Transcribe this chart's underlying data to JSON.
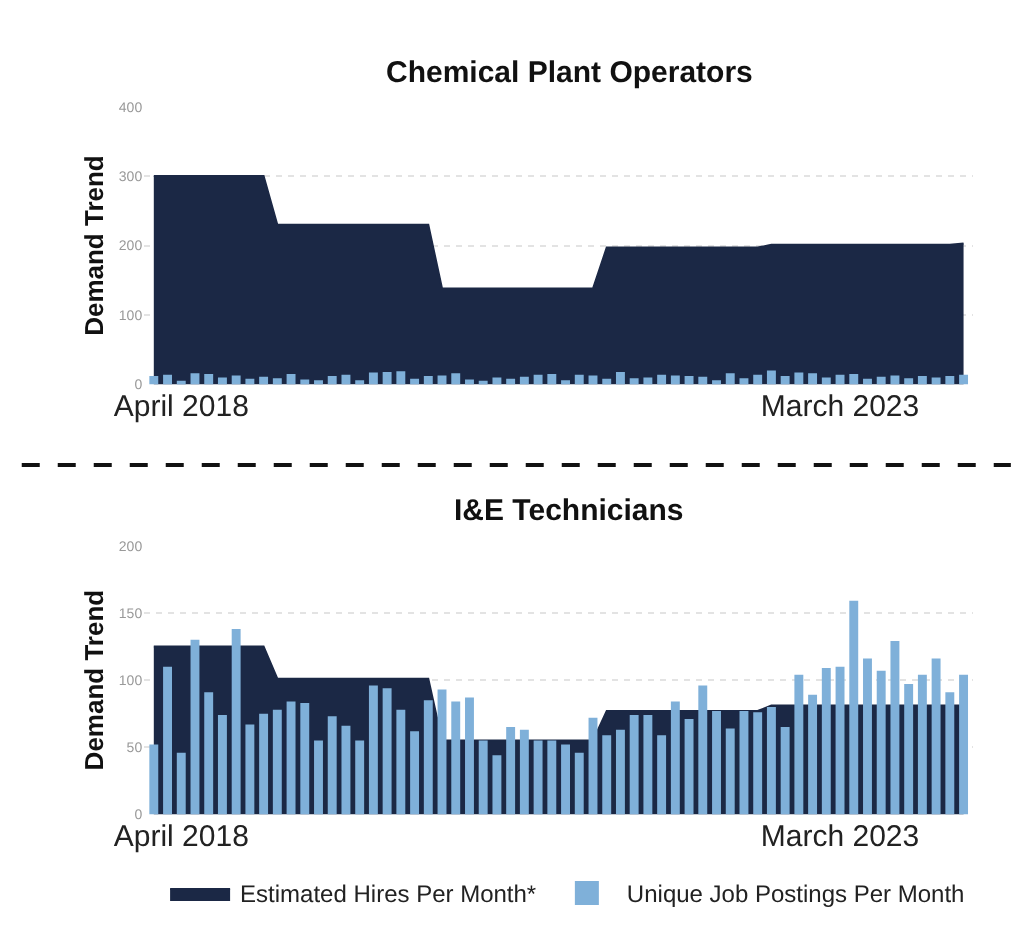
{
  "chart_data": [
    {
      "type": "area",
      "title": "Chemical Plant Operators",
      "ylabel": "Demand Trend",
      "categories": [
        null,
        null,
        "April 2018",
        null,
        null,
        null,
        null,
        null,
        null,
        null,
        null,
        null,
        null,
        null,
        null,
        null,
        null,
        null,
        null,
        null,
        null,
        null,
        null,
        null,
        null,
        null,
        null,
        null,
        null,
        null,
        null,
        null,
        null,
        null,
        null,
        null,
        null,
        null,
        null,
        null,
        null,
        null,
        null,
        null,
        null,
        null,
        null,
        null,
        null,
        null,
        "March 2023",
        null,
        null,
        null,
        null,
        null,
        null,
        null,
        null,
        null
      ],
      "series": [
        {
          "color": "#1b2845",
          "values": [
            300,
            300,
            300,
            300,
            300,
            300,
            300,
            300,
            300,
            230,
            230,
            230,
            230,
            230,
            230,
            230,
            230,
            230,
            230,
            230,
            230,
            138,
            138,
            138,
            138,
            138,
            138,
            138,
            138,
            138,
            138,
            138,
            138,
            197,
            197,
            197,
            197,
            197,
            197,
            197,
            197,
            197,
            197,
            197,
            197,
            201,
            201,
            201,
            201,
            201,
            201,
            201,
            201,
            201,
            201,
            201,
            201,
            201,
            201,
            203
          ]
        },
        {
          "type": "bar",
          "color": "#7fb0d9",
          "values": [
            12,
            14,
            5,
            16,
            15,
            10,
            13,
            8,
            11,
            9,
            15,
            7,
            6,
            12,
            14,
            6,
            17,
            18,
            19,
            8,
            12,
            13,
            16,
            7,
            5,
            10,
            8,
            11,
            14,
            15,
            6,
            14,
            13,
            8,
            18,
            9,
            10,
            14,
            13,
            12,
            11,
            6,
            16,
            9,
            14,
            20,
            12,
            17,
            16,
            10,
            14,
            15,
            8,
            11,
            13,
            9,
            12,
            10,
            12,
            14
          ]
        }
      ],
      "ylim": [
        0,
        400
      ],
      "yticks": [
        0,
        100,
        200,
        300,
        400
      ],
      "grid": "y"
    },
    {
      "type": "area",
      "title": "I&E Technicians",
      "ylabel": "Demand Trend",
      "categories": [
        null,
        null,
        "April 2018",
        null,
        null,
        null,
        null,
        null,
        null,
        null,
        null,
        null,
        null,
        null,
        null,
        null,
        null,
        null,
        null,
        null,
        null,
        null,
        null,
        null,
        null,
        null,
        null,
        null,
        null,
        null,
        null,
        null,
        null,
        null,
        null,
        null,
        null,
        null,
        null,
        null,
        null,
        null,
        null,
        null,
        null,
        null,
        null,
        null,
        null,
        null,
        "March 2023",
        null,
        null,
        null,
        null,
        null,
        null,
        null,
        null,
        null
      ],
      "series": [
        {
          "name": "Estimated Hires Per Month*",
          "color": "#1b2845",
          "values": [
            125,
            125,
            125,
            125,
            125,
            125,
            125,
            125,
            125,
            101,
            101,
            101,
            101,
            101,
            101,
            101,
            101,
            101,
            101,
            101,
            101,
            55,
            55,
            55,
            55,
            55,
            55,
            55,
            55,
            55,
            55,
            55,
            55,
            77,
            77,
            77,
            77,
            77,
            77,
            77,
            77,
            77,
            77,
            77,
            77,
            81,
            81,
            81,
            81,
            81,
            81,
            81,
            81,
            81,
            81,
            81,
            81,
            81,
            81,
            81
          ]
        },
        {
          "name": "Unique Job Postings Per Month",
          "type": "bar",
          "color": "#7fb0d9",
          "values": [
            52,
            110,
            46,
            130,
            91,
            74,
            138,
            67,
            75,
            78,
            84,
            83,
            55,
            73,
            66,
            55,
            96,
            94,
            78,
            62,
            85,
            93,
            84,
            87,
            55,
            44,
            65,
            63,
            55,
            55,
            52,
            46,
            72,
            59,
            63,
            74,
            74,
            59,
            84,
            71,
            96,
            77,
            64,
            77,
            76,
            80,
            65,
            104,
            89,
            109,
            110,
            159,
            116,
            107,
            129,
            97,
            104,
            116,
            91,
            104
          ]
        }
      ],
      "ylim": [
        0,
        200
      ],
      "yticks": [
        0,
        50,
        100,
        150,
        200
      ],
      "grid": "y",
      "legend": "bottom"
    }
  ]
}
